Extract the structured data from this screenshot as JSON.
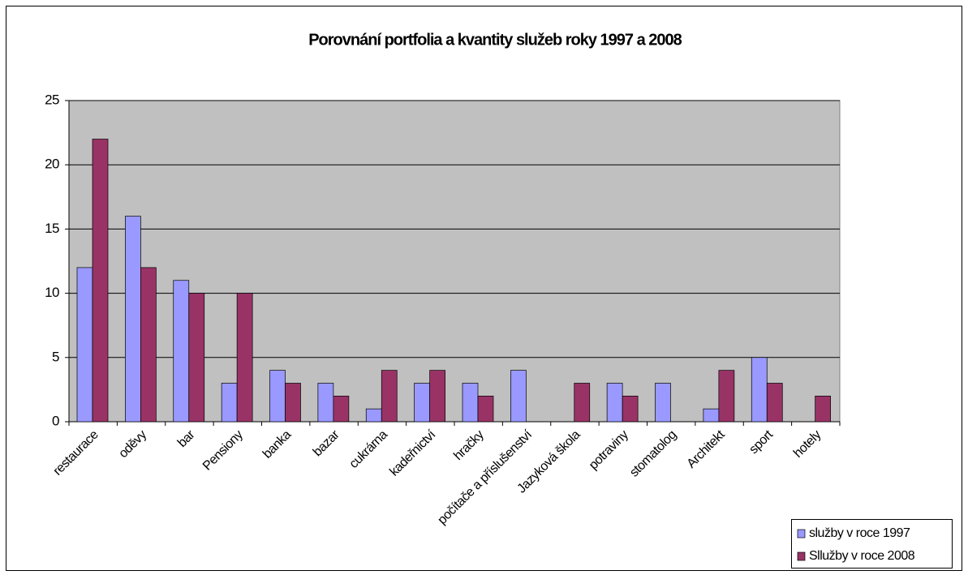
{
  "chart_data": {
    "type": "bar",
    "title": "Porovnání portfolia a kvantity služeb roky 1997 a 2008",
    "categories": [
      "restaurace",
      "oděvy",
      "bar",
      "Pensiony",
      "banka",
      "bazar",
      "cukrárna",
      "kadeřnictví",
      "hračky",
      "počítače a příslušenství",
      "Jazyková škola",
      "potraviny",
      "stomatolog",
      "Architekt",
      "sport",
      "hotely"
    ],
    "series": [
      {
        "name": "služby v roce 1997",
        "color": "#9999ff",
        "values": [
          12,
          16,
          11,
          3,
          4,
          3,
          1,
          3,
          3,
          4,
          null,
          3,
          3,
          1,
          5,
          null
        ]
      },
      {
        "name": "Sllužby v roce 2008",
        "color": "#993366",
        "values": [
          22,
          12,
          10,
          10,
          3,
          2,
          4,
          4,
          2,
          null,
          3,
          2,
          null,
          4,
          3,
          2
        ]
      }
    ],
    "ylim": [
      0,
      25
    ],
    "yticks": [
      0,
      5,
      10,
      15,
      20,
      25
    ],
    "grid": true
  }
}
